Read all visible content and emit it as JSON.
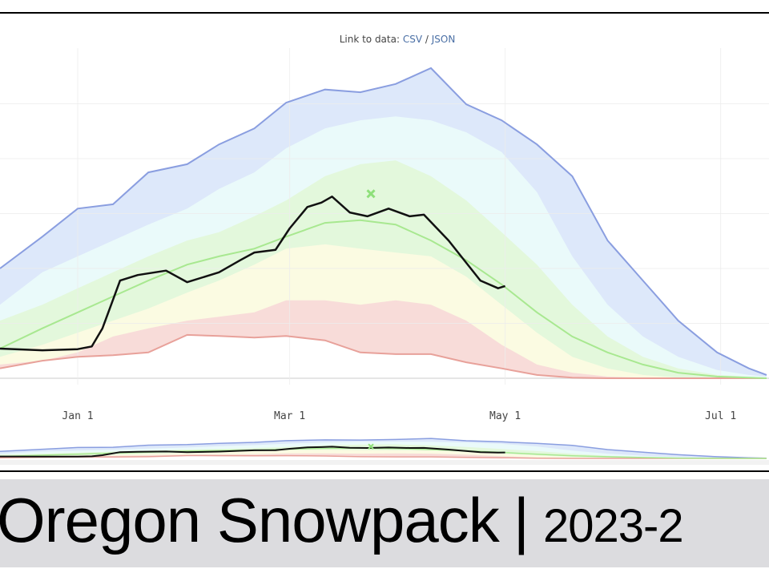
{
  "header": {
    "link_prefix": "Link to data: ",
    "csv_label": "CSV",
    "separator": " / ",
    "json_label": "JSON"
  },
  "title": {
    "main": "Oregon Snowpack",
    "divider": "|",
    "season": "2023-2"
  },
  "colors": {
    "max": "#8a9ee0",
    "max_fill": "#dde8fa",
    "p90_fill": "#eafafa",
    "p70_fill": "#e3f8dc",
    "median": "#a8e890",
    "p30_fill": "#fbfbe2",
    "p10_fill": "#f8dcd9",
    "min": "#e8a19a",
    "current": "#111111",
    "marker": "#8ee07a",
    "title_bg": "#dcdcdf"
  },
  "chart_data": {
    "type": "area",
    "xlim": [
      "2023-12-10",
      "2024-07-14"
    ],
    "ylim": [
      0,
      5.8
    ],
    "grid": true,
    "x_ticks": [
      {
        "date": "2024-01-01",
        "label": "Jan 1"
      },
      {
        "date": "2024-03-01",
        "label": "Mar 1"
      },
      {
        "date": "2024-05-01",
        "label": "May 1"
      },
      {
        "date": "2024-07-01",
        "label": "Jul 1"
      }
    ],
    "y_grid": [
      0,
      1,
      2,
      3,
      4,
      5
    ],
    "x": [
      "2023-12-10",
      "2023-12-22",
      "2024-01-01",
      "2024-01-11",
      "2024-01-21",
      "2024-02-01",
      "2024-02-10",
      "2024-02-20",
      "2024-02-29",
      "2024-03-11",
      "2024-03-21",
      "2024-03-31",
      "2024-04-10",
      "2024-04-20",
      "2024-04-30",
      "2024-05-10",
      "2024-05-20",
      "2024-05-30",
      "2024-06-09",
      "2024-06-19",
      "2024-06-30",
      "2024-07-09",
      "2024-07-14"
    ],
    "bands": {
      "max": [
        2.0,
        2.58,
        3.09,
        3.17,
        3.75,
        3.9,
        4.26,
        4.55,
        5.02,
        5.26,
        5.21,
        5.36,
        5.65,
        4.99,
        4.7,
        4.26,
        3.68,
        2.51,
        1.78,
        1.05,
        0.47,
        0.18,
        0.06
      ],
      "p90": [
        1.34,
        1.93,
        2.22,
        2.51,
        2.8,
        3.09,
        3.45,
        3.75,
        4.19,
        4.55,
        4.7,
        4.77,
        4.7,
        4.48,
        4.12,
        3.39,
        2.22,
        1.34,
        0.76,
        0.39,
        0.15,
        0.06,
        0.03
      ],
      "p70": [
        1.05,
        1.34,
        1.64,
        1.93,
        2.22,
        2.51,
        2.66,
        2.95,
        3.24,
        3.68,
        3.9,
        3.97,
        3.68,
        3.24,
        2.66,
        2.07,
        1.34,
        0.76,
        0.39,
        0.18,
        0.06,
        0.03,
        0.01
      ],
      "median": [
        0.54,
        0.91,
        1.2,
        1.49,
        1.78,
        2.07,
        2.22,
        2.36,
        2.58,
        2.83,
        2.88,
        2.8,
        2.51,
        2.15,
        1.71,
        1.2,
        0.76,
        0.47,
        0.25,
        0.1,
        0.03,
        0.01,
        0
      ],
      "p30": [
        0.39,
        0.61,
        0.83,
        1.05,
        1.27,
        1.56,
        1.78,
        2.07,
        2.36,
        2.44,
        2.36,
        2.29,
        2.22,
        1.85,
        1.34,
        0.83,
        0.39,
        0.18,
        0.06,
        0.01,
        0,
        0,
        0
      ],
      "p10": [
        0.25,
        0.32,
        0.47,
        0.76,
        0.91,
        1.05,
        1.12,
        1.2,
        1.42,
        1.42,
        1.34,
        1.42,
        1.34,
        1.05,
        0.61,
        0.25,
        0.1,
        0.03,
        0.01,
        0,
        0,
        0,
        0
      ],
      "min": [
        0.18,
        0.32,
        0.39,
        0.42,
        0.47,
        0.79,
        0.77,
        0.74,
        0.77,
        0.69,
        0.47,
        0.44,
        0.44,
        0.29,
        0.18,
        0.06,
        0.01,
        0,
        0,
        0,
        0,
        0,
        0
      ]
    },
    "current": {
      "x": [
        "2023-12-10",
        "2023-12-22",
        "2024-01-01",
        "2024-01-05",
        "2024-01-08",
        "2024-01-13",
        "2024-01-18",
        "2024-01-26",
        "2024-02-01",
        "2024-02-10",
        "2024-02-16",
        "2024-02-20",
        "2024-02-26",
        "2024-03-01",
        "2024-03-06",
        "2024-03-10",
        "2024-03-13",
        "2024-03-18",
        "2024-03-23",
        "2024-03-29",
        "2024-04-04",
        "2024-04-08",
        "2024-04-15",
        "2024-04-24",
        "2024-04-29",
        "2024-05-01"
      ],
      "y": [
        0.54,
        0.51,
        0.53,
        0.58,
        0.91,
        1.78,
        1.88,
        1.96,
        1.75,
        1.93,
        2.15,
        2.29,
        2.34,
        2.73,
        3.12,
        3.2,
        3.31,
        3.02,
        2.95,
        3.09,
        2.95,
        2.98,
        2.51,
        1.78,
        1.64,
        1.68
      ]
    },
    "marker": {
      "date": "2024-03-24",
      "value": 3.36,
      "symbol": "x"
    }
  }
}
